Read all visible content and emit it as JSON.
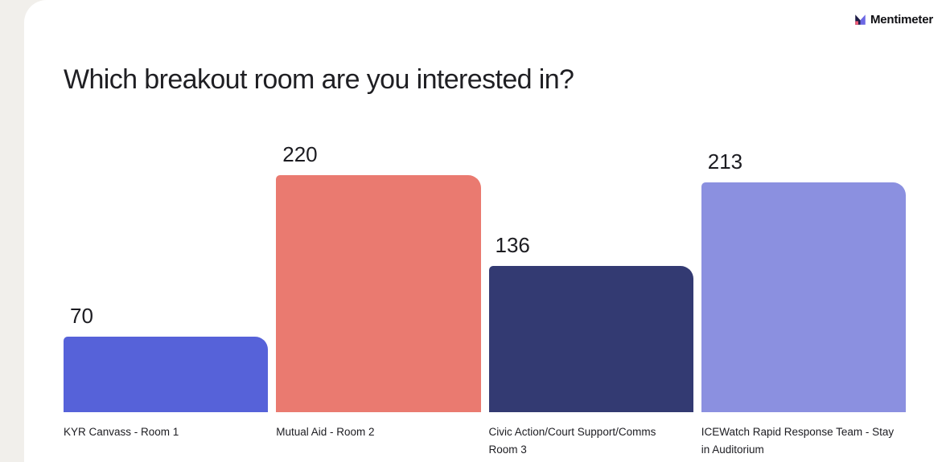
{
  "brand": {
    "name": "Mentimeter",
    "icon": "mentimeter-m-icon",
    "icon_colors": {
      "dark": "#1d1b45",
      "purple": "#6c67e4",
      "pink": "#f25c78"
    }
  },
  "chart_data": {
    "type": "bar",
    "title": "Which breakout room are you interested in?",
    "categories": [
      "KYR Canvass - Room 1",
      "Mutual Aid - Room 2",
      "Civic Action/Court Support/Comms Room 3",
      "ICEWatch Rapid Response Team - Stay in Auditorium"
    ],
    "values": [
      70,
      220,
      136,
      213
    ],
    "colors": [
      "#5662d9",
      "#ea7a70",
      "#333a72",
      "#8b90e0"
    ],
    "ylim": [
      0,
      220
    ],
    "grid": false,
    "legend": "none",
    "value_labels": "above-bar",
    "xlabel": "",
    "ylabel": ""
  },
  "page": {
    "background": "#f1efeb",
    "card_background": "#ffffff",
    "text_color": "#1c1c21"
  }
}
